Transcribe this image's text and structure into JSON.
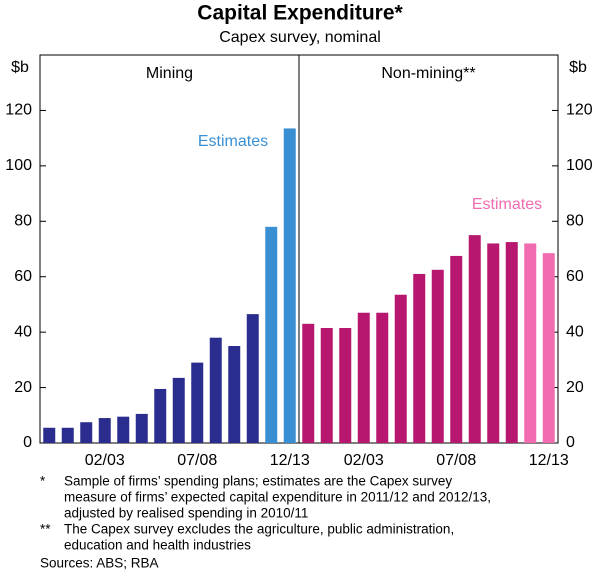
{
  "title": "Capital Expenditure*",
  "subtitle": "Capex survey, nominal",
  "y_unit": "$b",
  "chart_data": [
    {
      "type": "bar",
      "title": "Mining",
      "categories": [
        null,
        null,
        null,
        "02/03",
        null,
        null,
        null,
        null,
        "07/08",
        null,
        null,
        null,
        null,
        "12/13"
      ],
      "values": [
        5.5,
        5.5,
        7.5,
        9,
        9.5,
        10.5,
        19.5,
        23.5,
        29,
        38,
        35,
        46.5,
        78,
        113.5
      ],
      "colors": [
        "#2b2d8e",
        "#2b2d8e",
        "#2b2d8e",
        "#2b2d8e",
        "#2b2d8e",
        "#2b2d8e",
        "#2b2d8e",
        "#2b2d8e",
        "#2b2d8e",
        "#2b2d8e",
        "#2b2d8e",
        "#2b2d8e",
        "#3a8fd3",
        "#3a8fd3"
      ],
      "annotation": {
        "text": "Estimates",
        "color": "#3a8fd3"
      },
      "ylim": [
        0,
        140
      ],
      "yticks": [
        0,
        20,
        40,
        60,
        80,
        100,
        120
      ]
    },
    {
      "type": "bar",
      "title": "Non-mining**",
      "categories": [
        null,
        null,
        null,
        "02/03",
        null,
        null,
        null,
        null,
        "07/08",
        null,
        null,
        null,
        null,
        "12/13"
      ],
      "values": [
        43,
        41.5,
        41.5,
        47,
        47,
        53.5,
        61,
        62.5,
        67.5,
        75,
        72,
        72.5,
        72,
        68.5
      ],
      "colors": [
        "#b8176f",
        "#b8176f",
        "#b8176f",
        "#b8176f",
        "#b8176f",
        "#b8176f",
        "#b8176f",
        "#b8176f",
        "#b8176f",
        "#b8176f",
        "#b8176f",
        "#b8176f",
        "#f06bb0",
        "#f06bb0"
      ],
      "annotation": {
        "text": "Estimates",
        "color": "#f06bb0"
      },
      "ylim": [
        0,
        140
      ],
      "yticks": [
        0,
        20,
        40,
        60,
        80,
        100,
        120
      ]
    }
  ],
  "notes": [
    {
      "marker": "*",
      "lines": [
        "Sample of firms’ spending plans; estimates are the Capex survey",
        "measure of firms’ expected capital expenditure in 2011/12 and 2012/13,",
        "adjusted by realised spending in 2010/11"
      ]
    },
    {
      "marker": "**",
      "lines": [
        "The Capex survey excludes the agriculture, public administration,",
        "education and health industries"
      ]
    }
  ],
  "sources": "Sources: ABS; RBA"
}
